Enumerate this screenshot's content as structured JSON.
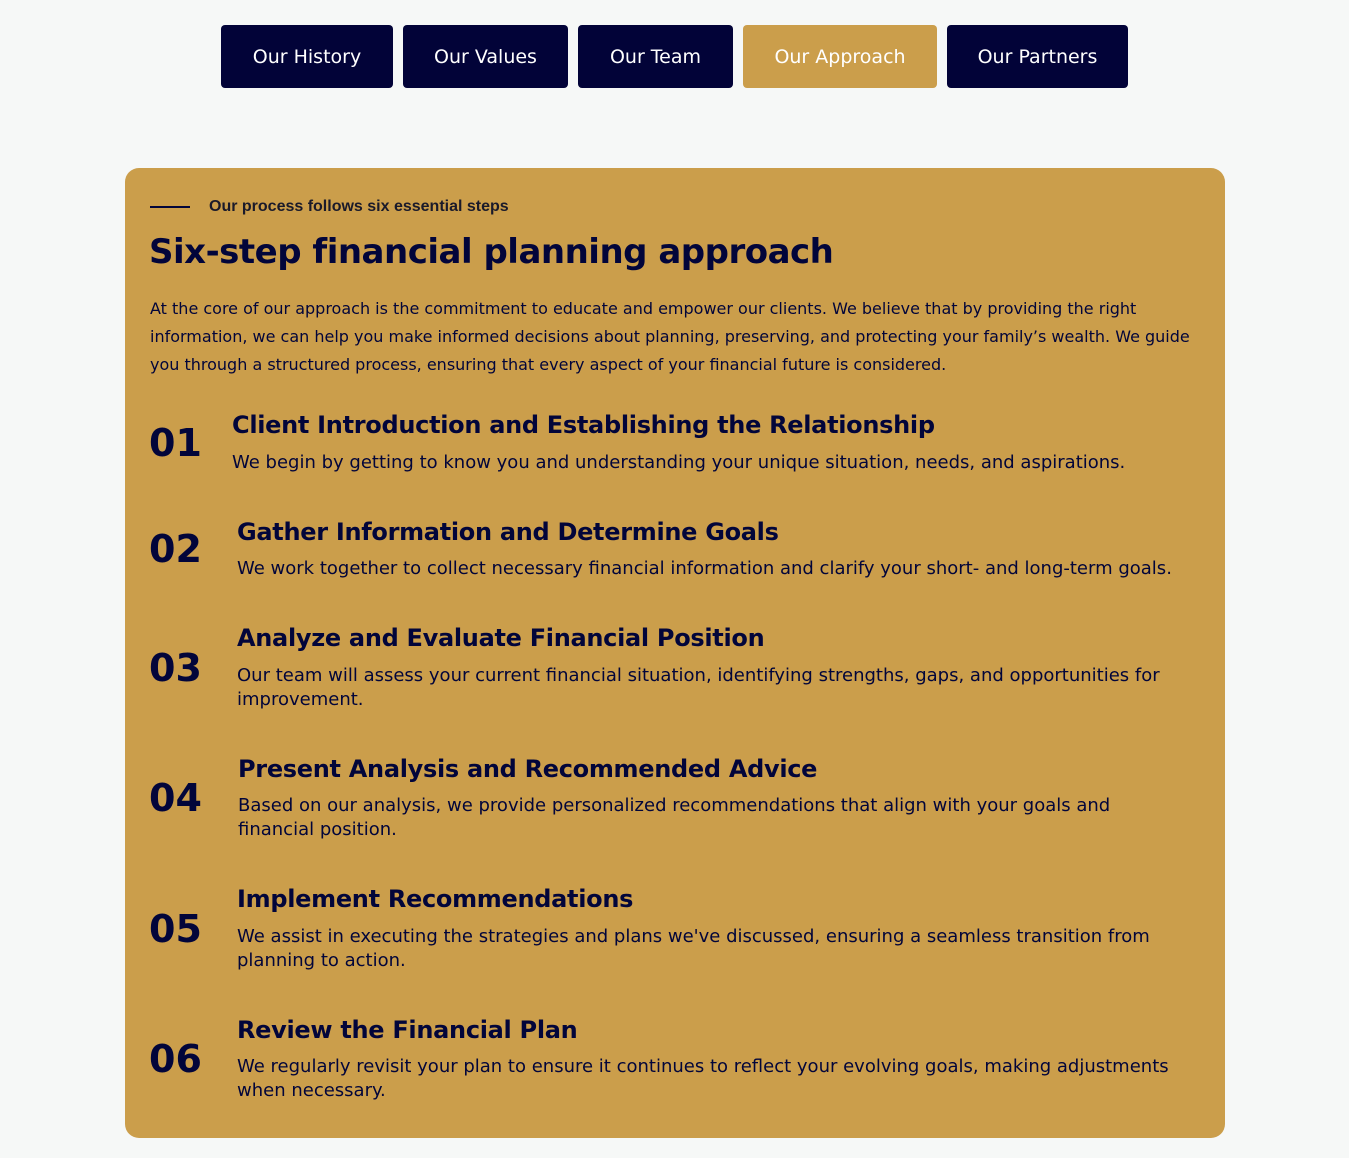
{
  "tabs": [
    {
      "label": "Our History",
      "active": false
    },
    {
      "label": "Our Values",
      "active": false
    },
    {
      "label": "Our Team",
      "active": false
    },
    {
      "label": "Our Approach",
      "active": true
    },
    {
      "label": "Our Partners",
      "active": false
    }
  ],
  "colors": {
    "navy": "#020338",
    "gold": "#cb9e4b",
    "background": "#f6f8f7"
  },
  "panel": {
    "eyebrow": "Our process follows six essential steps",
    "heading": "Six-step financial planning approach",
    "intro": "At the core of our approach is the commitment to educate and empower our clients. We believe that by providing the right information, we can help you make informed decisions about planning, preserving, and protecting your family’s wealth. We guide you through a structured process, ensuring that every aspect of your financial future is considered.",
    "steps": [
      {
        "number": "01",
        "title": "Client Introduction and Establishing the Relationship",
        "description": "We begin by getting to know you and understanding your unique situation, needs, and aspirations."
      },
      {
        "number": "02",
        "title": "Gather Information and Determine Goals",
        "description": "We work together to collect necessary financial information and clarify your short- and long-term goals."
      },
      {
        "number": "03",
        "title": "Analyze and Evaluate Financial Position",
        "description": "Our team will assess your current financial situation, identifying strengths, gaps, and opportunities for improvement."
      },
      {
        "number": "04",
        "title": "Present Analysis and Recommended Advice",
        "description": "Based on our analysis, we provide personalized recommendations that align with your goals and financial position."
      },
      {
        "number": "05",
        "title": "Implement Recommendations",
        "description": "We assist in executing the strategies and plans we've discussed, ensuring a seamless transition from planning to action."
      },
      {
        "number": "06",
        "title": "Review the Financial Plan",
        "description": "We regularly revisit your plan to ensure it continues to reflect your evolving goals, making adjustments when necessary."
      }
    ]
  }
}
